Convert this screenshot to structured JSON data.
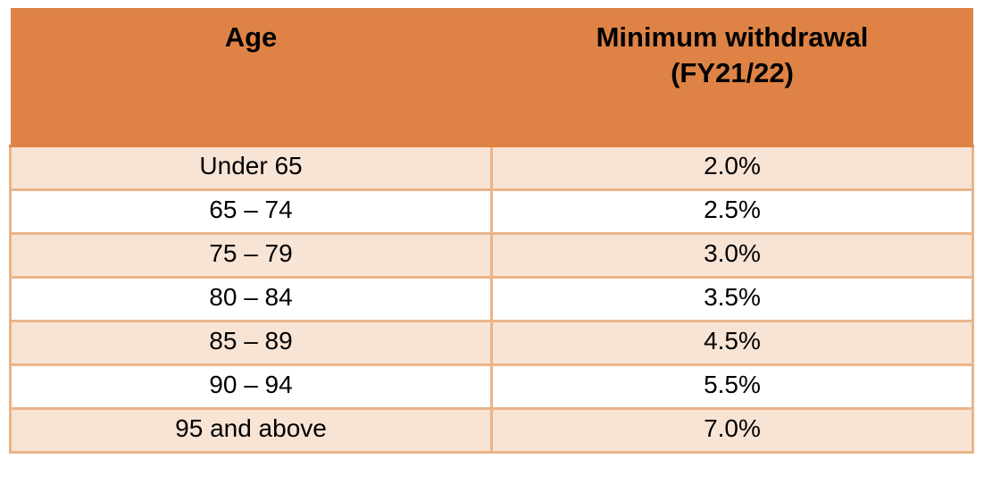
{
  "table": {
    "type": "table",
    "header": {
      "age_label": "Age",
      "withdrawal_label_line1": "Minimum withdrawal",
      "withdrawal_label_line2": "(FY21/22)"
    },
    "columns": [
      "Age",
      "Minimum withdrawal (FY21/22)"
    ],
    "rows": [
      {
        "age": "Under 65",
        "withdrawal": "2.0%"
      },
      {
        "age": "65 – 74",
        "withdrawal": "2.5%"
      },
      {
        "age": "75 – 79",
        "withdrawal": "3.0%"
      },
      {
        "age": "80 – 84",
        "withdrawal": "3.5%"
      },
      {
        "age": "85 – 89",
        "withdrawal": "4.5%"
      },
      {
        "age": "90 – 94",
        "withdrawal": "5.5%"
      },
      {
        "age": "95 and above",
        "withdrawal": "7.0%"
      }
    ],
    "colors": {
      "header_bg": "#DE8345",
      "row_alt_bg": "#F8E4D5",
      "row_bg": "#FFFFFF",
      "border": "#EBB488",
      "text": "#000000",
      "page_bg": "#FFFFFF"
    }
  }
}
